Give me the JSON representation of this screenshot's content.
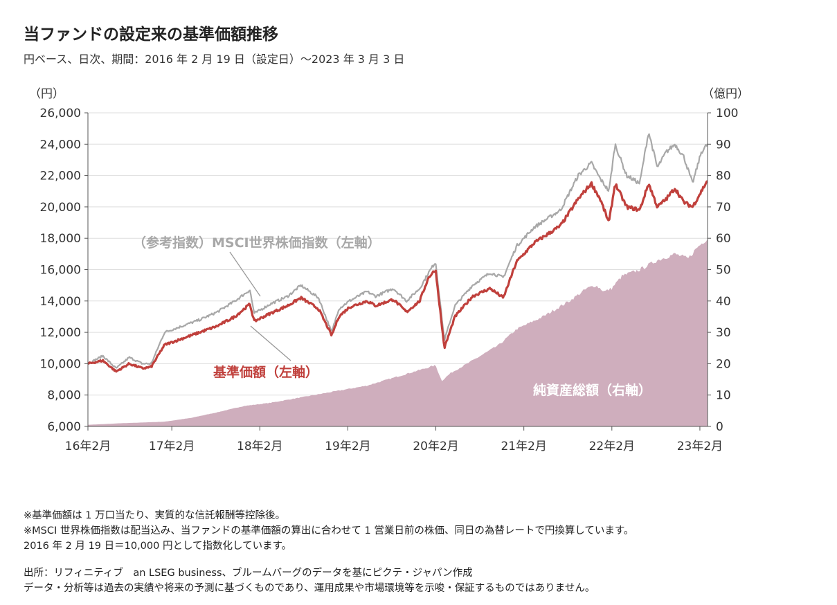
{
  "title": "当ファンドの設定来の基準価額推移",
  "subtitle": "円ベース、日次、期間：2016 年 2 月 19 日（設定日）～2023 年 3 月 3 日",
  "notes": [
    "※基準価額は 1 万口当たり、実質的な信託報酬等控除後。",
    "※MSCI 世界株価指数は配当込み、当ファンドの基準価額の算出に合わせて 1 営業日前の株価、同日の為替レートで円換算しています。",
    "2016 年 2 月 19 日＝10,000 円として指数化しています。"
  ],
  "sources": [
    "出所：リフィニティブ　an LSEG business、ブルームバーグのデータを基にピクテ・ジャパン作成",
    "データ・分析等は過去の実績や将来の予測に基づくものであり、運用成果や市場環境等を示唆・保証するものではありません。"
  ],
  "chart_data": {
    "type": "line",
    "left_axis": {
      "unit_label": "（円）",
      "range": [
        6000,
        26000
      ],
      "ticks": [
        6000,
        8000,
        10000,
        12000,
        14000,
        16000,
        18000,
        20000,
        22000,
        24000,
        26000
      ],
      "tick_labels": [
        "6,000",
        "8,000",
        "10,000",
        "12,000",
        "14,000",
        "16,000",
        "18,000",
        "20,000",
        "22,000",
        "24,000",
        "26,000"
      ]
    },
    "right_axis": {
      "unit_label": "（億円）",
      "range": [
        0,
        100
      ],
      "ticks": [
        0,
        10,
        20,
        30,
        40,
        50,
        60,
        70,
        80,
        90,
        100
      ]
    },
    "x_axis": {
      "range": [
        2016.13,
        2023.17
      ],
      "ticks": [
        2016.083,
        2017.083,
        2018.083,
        2019.083,
        2020.083,
        2021.083,
        2022.083,
        2023.083
      ],
      "tick_labels": [
        "16年2月",
        "17年2月",
        "18年2月",
        "19年2月",
        "20年2月",
        "21年2月",
        "22年2月",
        "23年2月"
      ]
    },
    "grid": true,
    "series": [
      {
        "name": "純資産総額（右軸）",
        "kind": "area",
        "axis": "right",
        "color": "#cfaebd",
        "label_color": "#ffffff",
        "x": [
          2016.13,
          2016.5,
          2017.0,
          2017.3,
          2017.6,
          2017.9,
          2018.2,
          2018.5,
          2018.8,
          2019.0,
          2019.3,
          2019.6,
          2019.9,
          2020.08,
          2020.15,
          2020.25,
          2020.5,
          2020.8,
          2021.0,
          2021.3,
          2021.6,
          2021.8,
          2021.9,
          2022.0,
          2022.08,
          2022.2,
          2022.4,
          2022.6,
          2022.8,
          2022.95,
          2023.05,
          2023.17
        ],
        "values": [
          0.5,
          1.0,
          1.5,
          2.7,
          4.5,
          6.5,
          7.5,
          9.0,
          10.5,
          11.5,
          13.0,
          15.5,
          18.0,
          19.5,
          14.5,
          17.0,
          21.0,
          26.0,
          31.0,
          35.0,
          40.0,
          44.0,
          45.0,
          43.0,
          44.0,
          48.0,
          50.0,
          53.0,
          55.0,
          53.5,
          57.0,
          60.0
        ]
      },
      {
        "name": "（参考指数）MSCI世界株価指数（左軸）",
        "kind": "line",
        "axis": "left",
        "color": "#a8a8a8",
        "label_color": "#a8a8a8",
        "x": [
          2016.13,
          2016.3,
          2016.45,
          2016.6,
          2016.75,
          2016.85,
          2017.0,
          2017.2,
          2017.4,
          2017.6,
          2017.8,
          2017.97,
          2018.02,
          2018.2,
          2018.4,
          2018.55,
          2018.75,
          2018.9,
          2018.98,
          2019.1,
          2019.3,
          2019.4,
          2019.6,
          2019.75,
          2019.9,
          2020.0,
          2020.08,
          2020.18,
          2020.3,
          2020.5,
          2020.7,
          2020.85,
          2021.0,
          2021.2,
          2021.5,
          2021.7,
          2021.85,
          2021.95,
          2022.05,
          2022.12,
          2022.25,
          2022.4,
          2022.5,
          2022.6,
          2022.7,
          2022.8,
          2022.9,
          2023.0,
          2023.1,
          2023.17
        ],
        "values": [
          10000,
          10500,
          9700,
          10400,
          10000,
          10000,
          12000,
          12400,
          12800,
          13300,
          14000,
          14700,
          13200,
          13800,
          14300,
          15000,
          14200,
          12000,
          13500,
          14000,
          14600,
          14300,
          14800,
          14000,
          14800,
          15800,
          16500,
          11500,
          13700,
          15000,
          15800,
          15500,
          17500,
          18700,
          19800,
          22000,
          22800,
          21800,
          21000,
          24000,
          22000,
          21500,
          24800,
          22500,
          23500,
          24000,
          23200,
          21500,
          23500,
          24000
        ]
      },
      {
        "name": "基準価額（左軸）",
        "kind": "line",
        "axis": "left",
        "color": "#c0403c",
        "label_color": "#c0403c",
        "x": [
          2016.13,
          2016.3,
          2016.45,
          2016.6,
          2016.75,
          2016.85,
          2017.0,
          2017.2,
          2017.4,
          2017.6,
          2017.8,
          2017.97,
          2018.02,
          2018.2,
          2018.4,
          2018.55,
          2018.75,
          2018.9,
          2018.98,
          2019.1,
          2019.3,
          2019.4,
          2019.6,
          2019.75,
          2019.9,
          2020.0,
          2020.08,
          2020.18,
          2020.3,
          2020.5,
          2020.7,
          2020.85,
          2021.0,
          2021.2,
          2021.5,
          2021.7,
          2021.85,
          2021.95,
          2022.05,
          2022.12,
          2022.25,
          2022.4,
          2022.5,
          2022.6,
          2022.7,
          2022.8,
          2022.9,
          2023.0,
          2023.1,
          2023.17
        ],
        "values": [
          10000,
          10200,
          9500,
          10000,
          9700,
          9800,
          11200,
          11600,
          12000,
          12400,
          13000,
          13800,
          12700,
          13200,
          13700,
          14200,
          13500,
          11800,
          13000,
          13600,
          14000,
          13700,
          14100,
          13300,
          14000,
          15500,
          16000,
          11000,
          13000,
          14300,
          14800,
          14200,
          16500,
          17700,
          18800,
          20500,
          21500,
          20500,
          19000,
          21500,
          20000,
          19800,
          21500,
          20000,
          20500,
          21200,
          20300,
          20000,
          21000,
          21700
        ]
      }
    ]
  }
}
